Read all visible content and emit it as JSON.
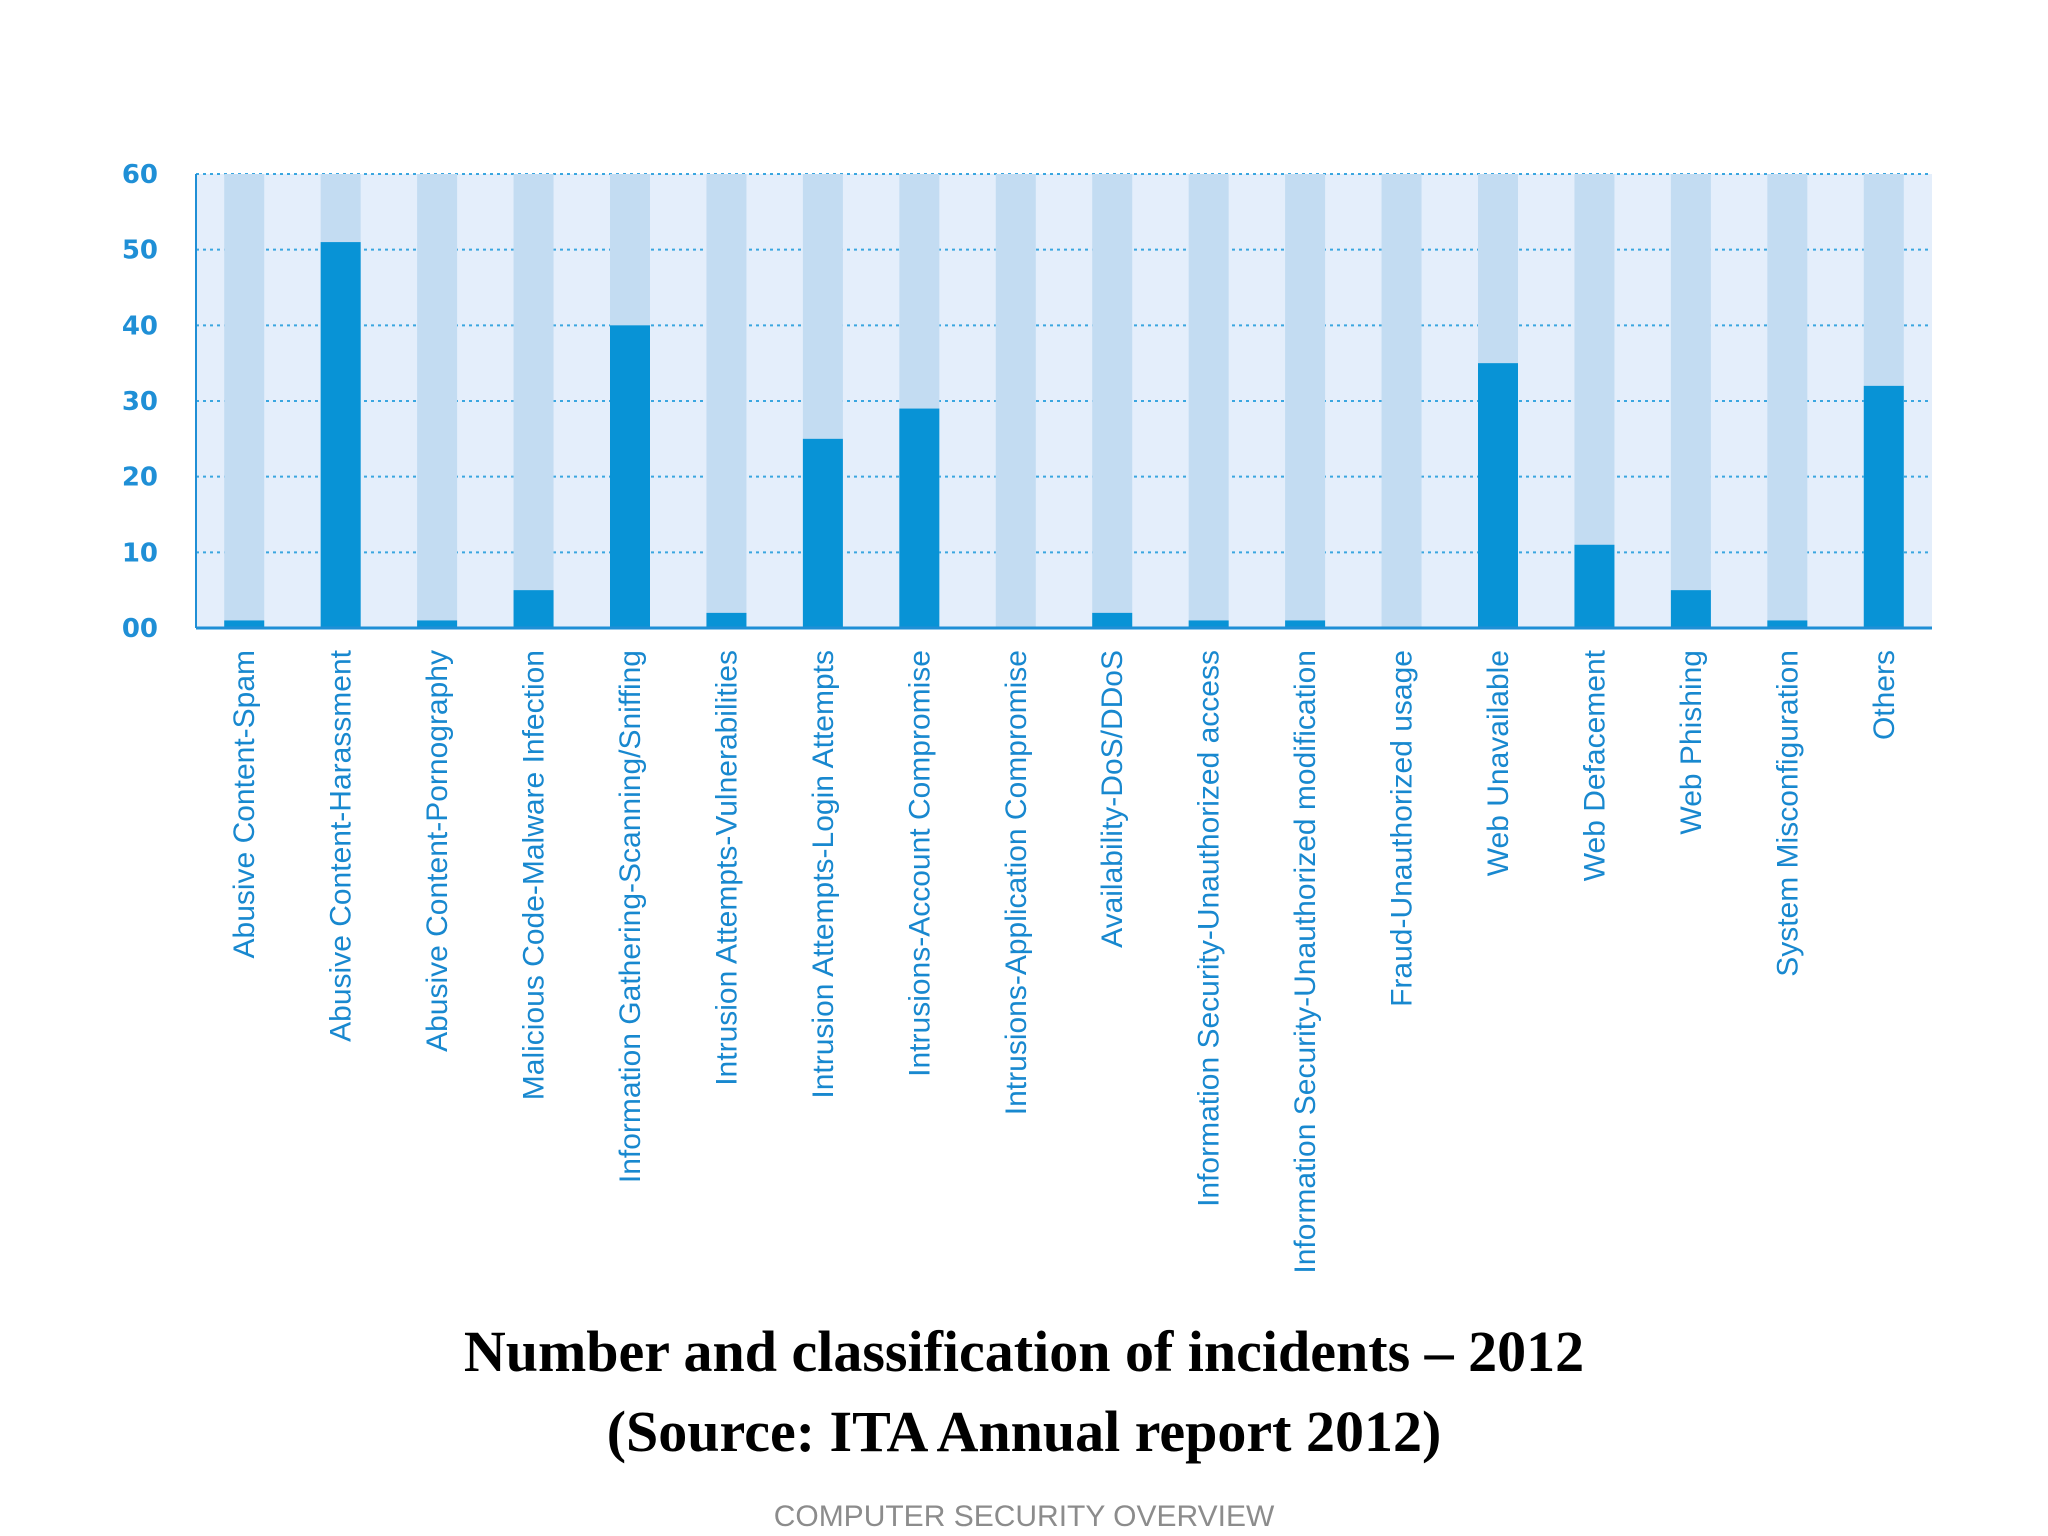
{
  "chart_data": {
    "type": "bar",
    "categories": [
      "Abusive Content-Spam",
      "Abusive Content-Harassment",
      "Abusive Content-Pornography",
      "Malicious Code-Malware Infection",
      "Information Gathering-Scanning/Sniffing",
      "Intrusion Attempts-Vulnerabilities",
      "Intrusion Attempts-Login Attempts",
      "Intrusions-Account Compromise",
      "Intrusions-Application Compromise",
      "Availability-DoS/DDoS",
      "Information Security-Unauthorized access",
      "Information Security-Unauthorized modification",
      "Fraud-Unauthorized usage",
      "Web Unavailable",
      "Web Defacement",
      "Web Phishing",
      "System Misconfiguration",
      "Others"
    ],
    "values": [
      1,
      51,
      1,
      5,
      40,
      2,
      25,
      29,
      0,
      2,
      1,
      1,
      0,
      35,
      11,
      5,
      1,
      32
    ],
    "ylim": [
      0,
      60
    ],
    "yticks": [
      "00",
      "10",
      "20",
      "30",
      "40",
      "50",
      "60"
    ],
    "grid": true,
    "colors": {
      "bar": "#0893d6",
      "bar_background": "#c3dcf2",
      "plot_background": "#e4eefb",
      "grid": "#3aa6e0",
      "axis": "#1f8fd6",
      "text": "#1888cf"
    }
  },
  "caption": {
    "line1": "Number and classification of incidents – 2012",
    "line2": "(Source: ITA Annual report 2012)"
  },
  "footer": "COMPUTER SECURITY OVERVIEW"
}
